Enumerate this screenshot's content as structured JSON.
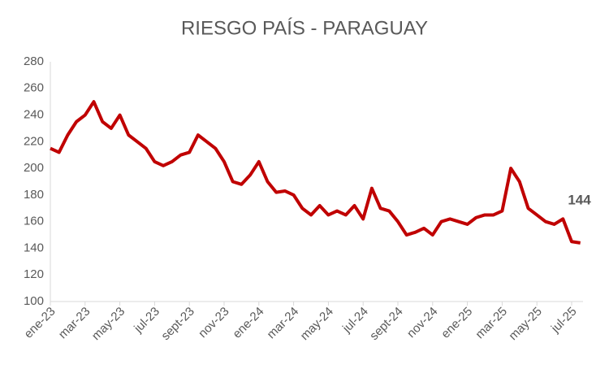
{
  "chart_data": {
    "type": "line",
    "title": "RIESGO PAÍS - PARAGUAY",
    "categories": [
      "ene-23",
      null,
      null,
      null,
      "mar-23",
      null,
      null,
      null,
      "may-23",
      null,
      null,
      null,
      "jul-23",
      null,
      null,
      null,
      "sept-23",
      null,
      null,
      null,
      "nov-23",
      null,
      null,
      null,
      "ene-24",
      null,
      null,
      null,
      "mar-24",
      null,
      null,
      null,
      "may-24",
      null,
      null,
      null,
      "jul-24",
      null,
      null,
      null,
      "sept-24",
      null,
      null,
      null,
      "nov-24",
      null,
      null,
      null,
      "ene-25",
      null,
      null,
      null,
      "mar-25",
      null,
      null,
      null,
      "may-25",
      null,
      null,
      null,
      "jul-25",
      null
    ],
    "series": [
      {
        "name": "Riesgo país",
        "color": "#c00000",
        "values": [
          215,
          212,
          225,
          235,
          240,
          250,
          235,
          230,
          240,
          225,
          220,
          215,
          205,
          202,
          205,
          210,
          212,
          225,
          220,
          215,
          205,
          190,
          188,
          195,
          205,
          190,
          182,
          183,
          180,
          170,
          165,
          172,
          165,
          168,
          165,
          172,
          162,
          185,
          170,
          168,
          160,
          150,
          152,
          155,
          150,
          160,
          162,
          160,
          158,
          163,
          165,
          165,
          168,
          200,
          190,
          170,
          165,
          160,
          158,
          162,
          145,
          144
        ],
        "value_labels": [
          null,
          null,
          null,
          null,
          null,
          null,
          null,
          null,
          null,
          null,
          null,
          null,
          null,
          null,
          null,
          null,
          null,
          null,
          null,
          null,
          null,
          null,
          null,
          null,
          null,
          null,
          null,
          null,
          null,
          null,
          null,
          null,
          null,
          null,
          null,
          null,
          null,
          null,
          null,
          null,
          null,
          null,
          null,
          null,
          null,
          null,
          null,
          null,
          null,
          null,
          null,
          null,
          null,
          null,
          null,
          null,
          null,
          null,
          null,
          null,
          null,
          "144"
        ]
      }
    ],
    "ylim": [
      100,
      280
    ],
    "yticks": [
      100,
      120,
      140,
      160,
      180,
      200,
      220,
      240,
      260,
      280
    ],
    "grid": false
  }
}
